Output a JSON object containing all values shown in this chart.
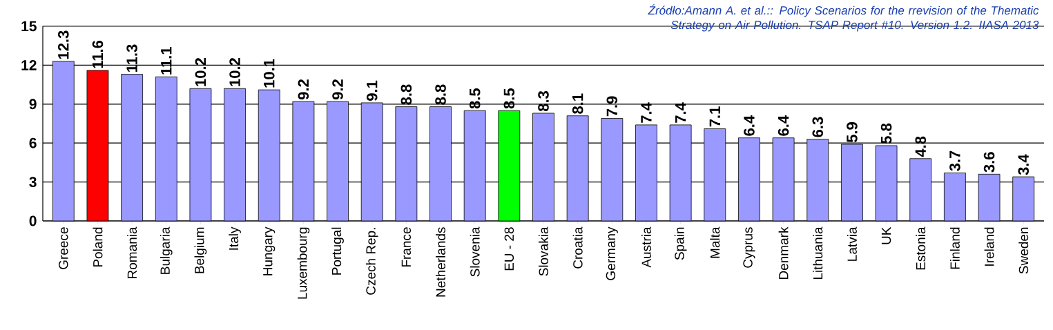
{
  "chart_data": {
    "type": "bar",
    "categories": [
      "Greece",
      "Poland",
      "Romania",
      "Bulgaria",
      "Belgium",
      "Italy",
      "Hungary",
      "Luxembourg",
      "Portugal",
      "Czech Rep.",
      "France",
      "Netherlands",
      "Slovenia",
      "EU - 28",
      "Slovakia",
      "Croatia",
      "Germany",
      "Austria",
      "Spain",
      "Malta",
      "Cyprus",
      "Denmark",
      "Lithuania",
      "Latvia",
      "UK",
      "Estonia",
      "Finland",
      "Ireland",
      "Sweden"
    ],
    "values": [
      12.3,
      11.6,
      11.3,
      11.1,
      10.2,
      10.2,
      10.1,
      9.2,
      9.2,
      9.1,
      8.8,
      8.8,
      8.5,
      8.5,
      8.3,
      8.1,
      7.9,
      7.4,
      7.4,
      7.1,
      6.4,
      6.4,
      6.3,
      5.9,
      5.8,
      4.8,
      3.7,
      3.6,
      3.4
    ],
    "colors": [
      "#9999ff",
      "#ff0000",
      "#9999ff",
      "#9999ff",
      "#9999ff",
      "#9999ff",
      "#9999ff",
      "#9999ff",
      "#9999ff",
      "#9999ff",
      "#9999ff",
      "#9999ff",
      "#9999ff",
      "#00ff00",
      "#9999ff",
      "#9999ff",
      "#9999ff",
      "#9999ff",
      "#9999ff",
      "#9999ff",
      "#9999ff",
      "#9999ff",
      "#9999ff",
      "#9999ff",
      "#9999ff",
      "#9999ff",
      "#9999ff",
      "#9999ff",
      "#9999ff"
    ],
    "ylim": [
      0,
      15
    ],
    "yticks": [
      0,
      3,
      6,
      9,
      12,
      15
    ],
    "grid": "y",
    "data_labels": true,
    "annotations": [
      "Źródło:Amann A. et al.:: Policy Scenarios for the rrevision of the Thematic Strategy on Air Pollution. TSAP Report #10. Version 1.2. IIASA 2013"
    ]
  }
}
